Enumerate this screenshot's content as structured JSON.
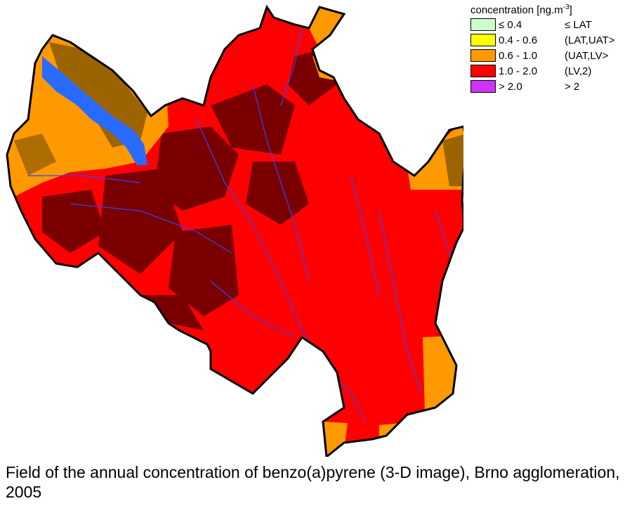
{
  "legend": {
    "title_prefix": "concentration [ng.m",
    "title_exp": "-3",
    "title_suffix": "]",
    "items": [
      {
        "range": "≤ 0.4",
        "class": "≤ LAT",
        "color": "#ccffcc"
      },
      {
        "range": "0.4 - 0.6",
        "class": "(LAT,UAT>",
        "color": "#ffff00"
      },
      {
        "range": "0.6 - 1.0",
        "class": "(UAT,LV>",
        "color": "#ff9900"
      },
      {
        "range": "1.0 - 2.0",
        "class": "(LV,2)",
        "color": "#ff0000"
      },
      {
        "range": "> 2.0",
        "class": "> 2",
        "color": "#cc33ff"
      }
    ]
  },
  "map": {
    "colors": {
      "red": "#ff0000",
      "dark_red": "#7a0000",
      "orange": "#ff9900",
      "brown": "#8b5a00",
      "water": "#2a6bff",
      "river": "#3344ff",
      "boundary": "#000000"
    }
  },
  "caption": "Field of the annual concentration of benzo(a)pyrene (3-D image), Brno agglomeration, 2005"
}
